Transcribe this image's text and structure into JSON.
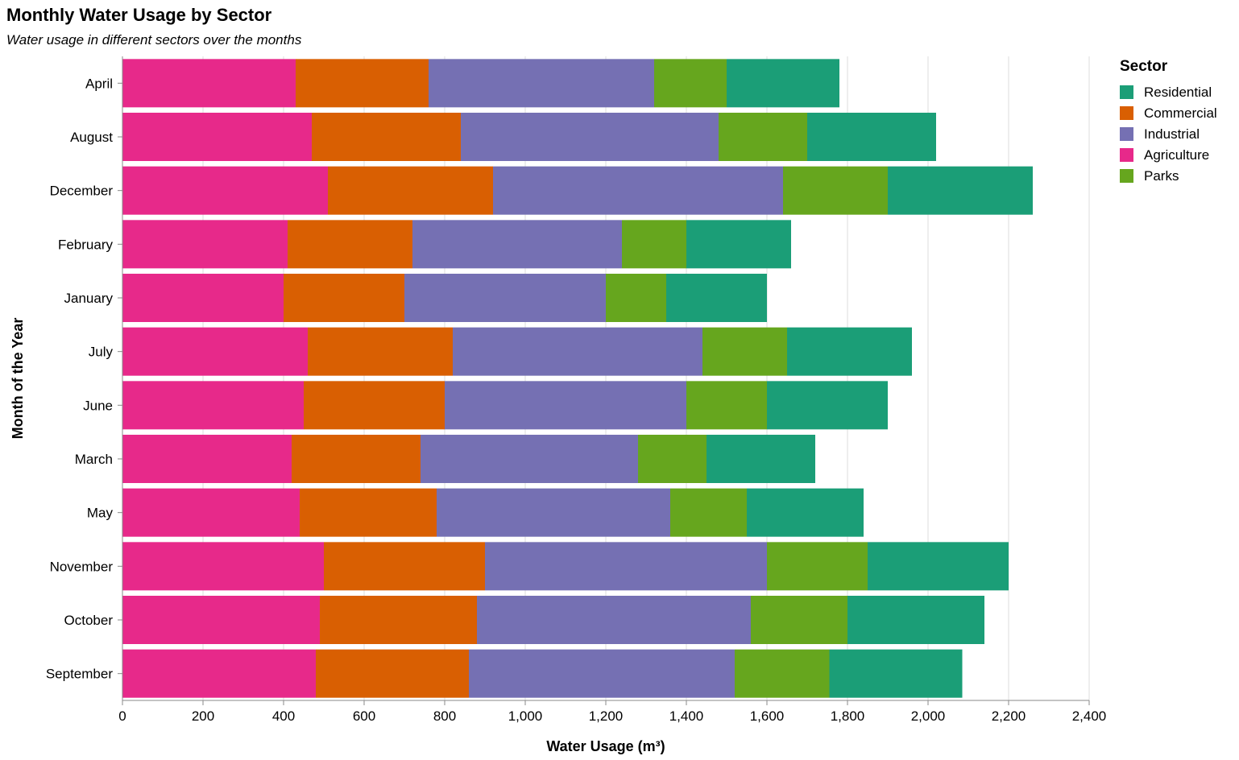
{
  "chart_data": {
    "type": "bar",
    "orientation": "horizontal",
    "stacked": true,
    "title": "Monthly Water Usage by Sector",
    "subtitle": "Water usage in different sectors over the months",
    "xlabel": "Water Usage (m³)",
    "ylabel": "Month of the Year",
    "xlim": [
      0,
      2400
    ],
    "xticks": [
      0,
      200,
      400,
      600,
      800,
      1000,
      1200,
      1400,
      1600,
      1800,
      2000,
      2200,
      2400
    ],
    "xtick_labels": [
      "0",
      "200",
      "400",
      "600",
      "800",
      "1,000",
      "1,200",
      "1,400",
      "1,600",
      "1,800",
      "2,000",
      "2,200",
      "2,400"
    ],
    "grid": true,
    "categories": [
      "April",
      "August",
      "December",
      "February",
      "January",
      "July",
      "June",
      "March",
      "May",
      "November",
      "October",
      "September"
    ],
    "stack_order": [
      "Agriculture",
      "Commercial",
      "Industrial",
      "Parks",
      "Residential"
    ],
    "series": [
      {
        "name": "Residential",
        "color": "#1b9e77",
        "values": [
          280,
          320,
          360,
          260,
          250,
          310,
          300,
          270,
          290,
          350,
          340,
          330
        ]
      },
      {
        "name": "Commercial",
        "color": "#d95f02",
        "values": [
          330,
          370,
          410,
          310,
          300,
          360,
          350,
          320,
          340,
          400,
          390,
          380
        ]
      },
      {
        "name": "Industrial",
        "color": "#7570b3",
        "values": [
          560,
          640,
          720,
          520,
          500,
          620,
          600,
          540,
          580,
          700,
          680,
          660
        ]
      },
      {
        "name": "Agriculture",
        "color": "#e7298a",
        "values": [
          430,
          470,
          510,
          410,
          400,
          460,
          450,
          420,
          440,
          500,
          490,
          480
        ]
      },
      {
        "name": "Parks",
        "color": "#66a61e",
        "values": [
          180,
          220,
          260,
          160,
          150,
          210,
          200,
          170,
          190,
          250,
          240,
          235
        ]
      }
    ],
    "legend": {
      "title": "Sector",
      "position": "right",
      "entries": [
        "Residential",
        "Commercial",
        "Industrial",
        "Agriculture",
        "Parks"
      ]
    }
  }
}
